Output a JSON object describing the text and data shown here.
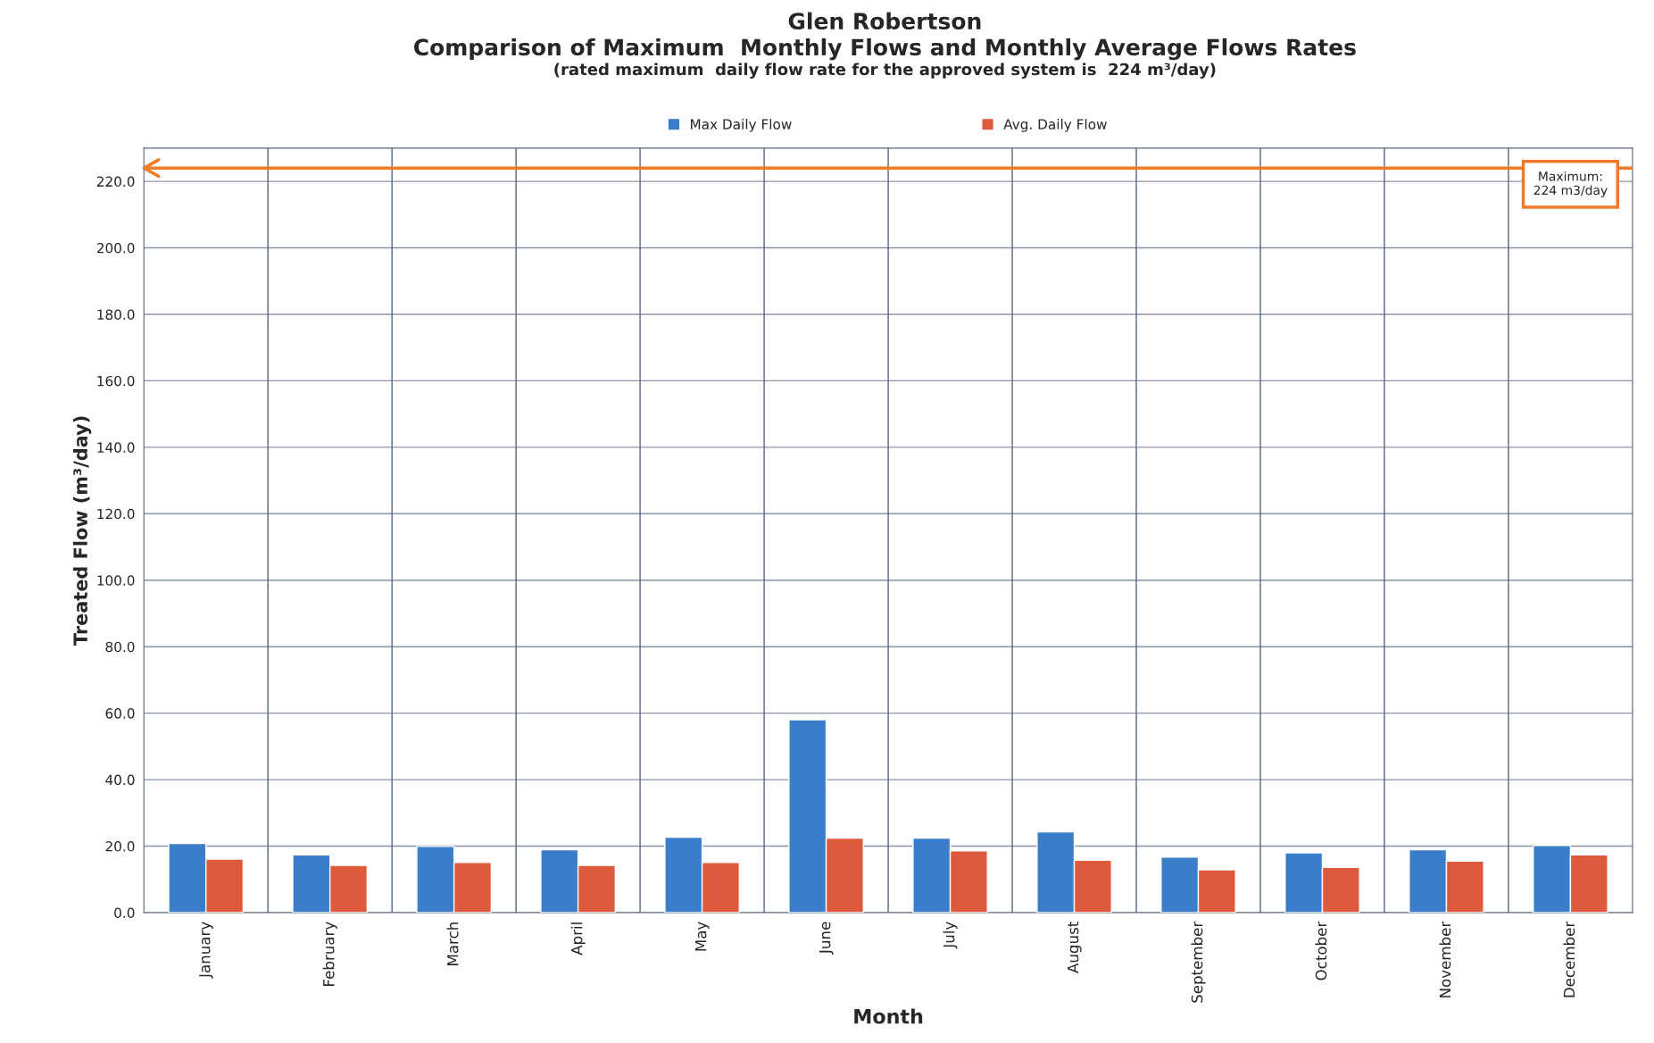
{
  "chart_data": {
    "type": "bar",
    "title": "Glen Robertson",
    "subtitle": "Comparison of Maximum  Monthly Flows and Monthly Average Flows Rates",
    "annotations": [
      "(rated maximum  daily flow rate for the approved system is  224 m³/day)"
    ],
    "xlabel": "Month",
    "ylabel": "Treated Flow (m³/day)",
    "categories": [
      "January",
      "February",
      "March",
      "April",
      "May",
      "June",
      "July",
      "August",
      "September",
      "October",
      "November",
      "December"
    ],
    "series": [
      {
        "name": "Max Daily Flow",
        "color": "#3a7dc9",
        "values": [
          20.8,
          17.4,
          19.9,
          18.9,
          22.7,
          58,
          22.4,
          24.3,
          16.7,
          18.0,
          18.9,
          20.2
        ]
      },
      {
        "name": "Avg. Daily Flow",
        "color": "#dd5a3c",
        "values": [
          16.1,
          14.2,
          15.1,
          14.2,
          15.1,
          22.4,
          18.6,
          15.8,
          12.9,
          13.6,
          15.5,
          17.4
        ]
      }
    ],
    "ylim": [
      0,
      230
    ],
    "yticks": [
      {
        "value": 0,
        "label": "0.0"
      },
      {
        "value": 20,
        "label": "20.0"
      },
      {
        "value": 40,
        "label": "40.0"
      },
      {
        "value": 60,
        "label": "60.0"
      },
      {
        "value": 80,
        "label": "80.0"
      },
      {
        "value": 100,
        "label": "100.0"
      },
      {
        "value": 120,
        "label": "120.0"
      },
      {
        "value": 140,
        "label": "140.0"
      },
      {
        "value": 160,
        "label": "160.0"
      },
      {
        "value": 180,
        "label": "180.0"
      },
      {
        "value": 200,
        "label": "200.0"
      },
      {
        "value": 220,
        "label": "220.0"
      }
    ],
    "ref_lines": [
      {
        "axis": "y",
        "value": 224,
        "label": "Maximum:\n224 m3/day",
        "color": "#f07a26"
      }
    ],
    "grid": true,
    "legend": "top"
  }
}
